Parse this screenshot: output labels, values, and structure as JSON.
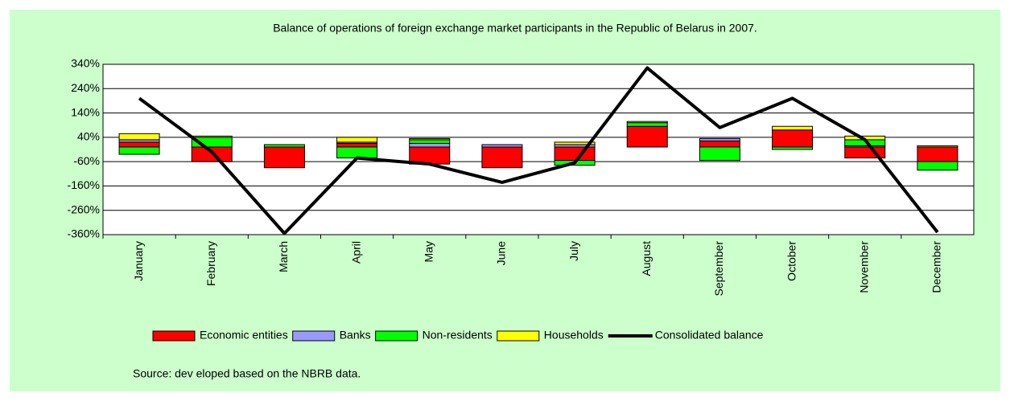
{
  "chart_data": {
    "type": "bar",
    "title": "Balance of operations of foreign exchange market participants in the Republic of Belarus in 2007.",
    "source": "Source: dev eloped based on the NBRB data.",
    "categories": [
      "January",
      "February",
      "March",
      "April",
      "May",
      "June",
      "July",
      "August",
      "September",
      "October",
      "November",
      "December"
    ],
    "series": [
      {
        "name": "Economic entities",
        "type": "bar",
        "color": "#ff0000",
        "values": [
          20,
          -60,
          -85,
          15,
          -70,
          -85,
          -55,
          85,
          25,
          70,
          -45,
          -60
        ]
      },
      {
        "name": "Banks",
        "type": "bar",
        "color": "#9999ff",
        "values": [
          10,
          0,
          0,
          5,
          15,
          10,
          10,
          0,
          10,
          0,
          5,
          0
        ]
      },
      {
        "name": "Non-residents",
        "type": "bar",
        "color": "#00ff00",
        "values": [
          -30,
          40,
          10,
          -45,
          15,
          0,
          -20,
          15,
          -55,
          -10,
          25,
          -35
        ]
      },
      {
        "name": "Households",
        "type": "bar",
        "color": "#ffff00",
        "values": [
          25,
          5,
          0,
          20,
          5,
          0,
          10,
          5,
          0,
          15,
          15,
          5
        ]
      },
      {
        "name": "Consolidated balance",
        "type": "line",
        "color": "#000000",
        "values": [
          200,
          -20,
          -355,
          -45,
          -70,
          -145,
          -65,
          325,
          80,
          200,
          30,
          -350
        ]
      }
    ],
    "ylim": [
      -360,
      340
    ],
    "yticks": [
      {
        "value": -360,
        "label": "-360%"
      },
      {
        "value": -260,
        "label": "-260%"
      },
      {
        "value": -160,
        "label": "-160%"
      },
      {
        "value": -60,
        "label": "-60%"
      },
      {
        "value": 40,
        "label": "40%"
      },
      {
        "value": 140,
        "label": "140%"
      },
      {
        "value": 240,
        "label": "240%"
      },
      {
        "value": 340,
        "label": "340%"
      }
    ],
    "grid": true
  }
}
